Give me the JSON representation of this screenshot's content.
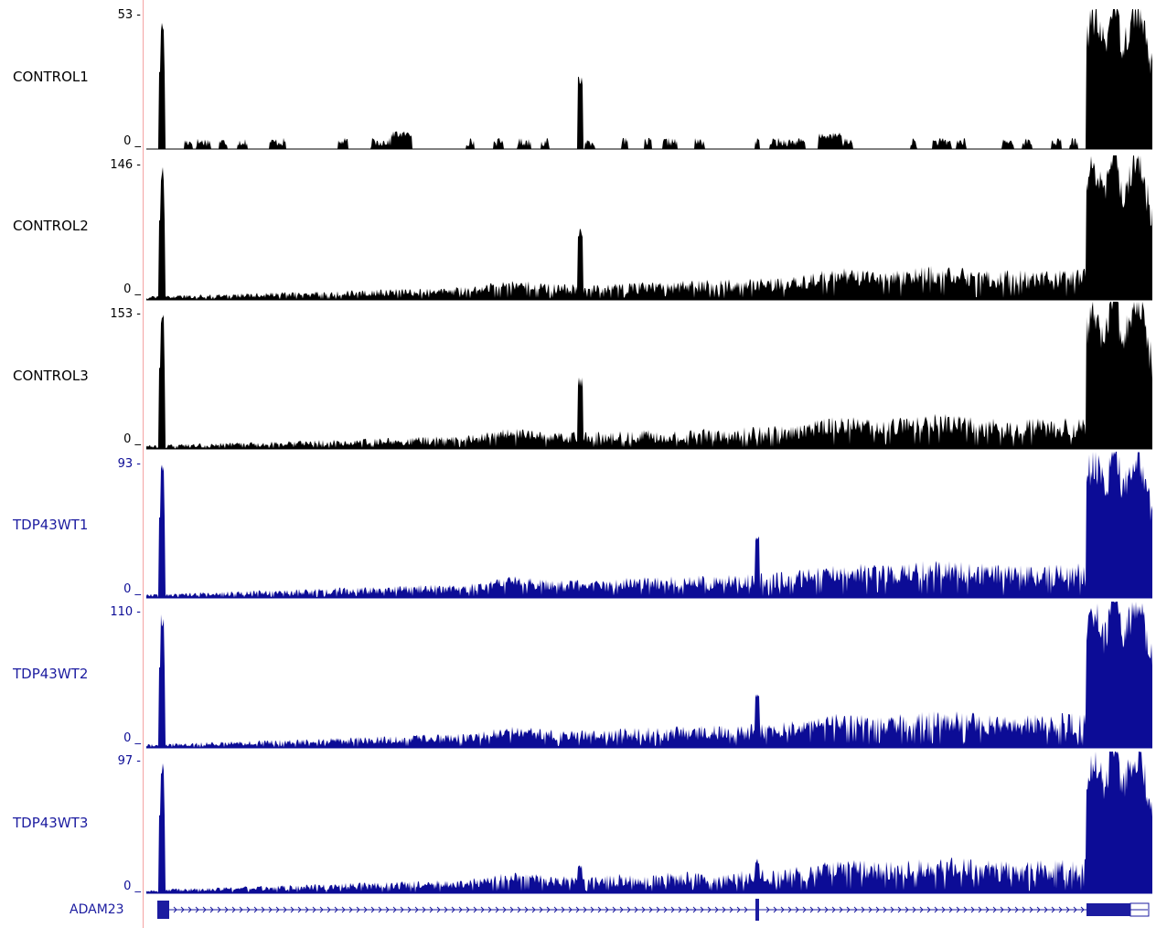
{
  "tracks": [
    {
      "name": "CONTROL1",
      "max_label": "53 -",
      "min_label": "0 _",
      "color": "#000000"
    },
    {
      "name": "CONTROL2",
      "max_label": "146 -",
      "min_label": "0 _",
      "color": "#000000"
    },
    {
      "name": "CONTROL3",
      "max_label": "153 -",
      "min_label": "0 _",
      "color": "#000000"
    },
    {
      "name": "TDP43WT1",
      "max_label": "93 -",
      "min_label": "0 _",
      "color": "#0c0c96"
    },
    {
      "name": "TDP43WT2",
      "max_label": "110 -",
      "min_label": "0 _",
      "color": "#0c0c96"
    },
    {
      "name": "TDP43WT3",
      "max_label": "97 -",
      "min_label": "0 _",
      "color": "#0c0c96"
    }
  ],
  "gene": {
    "name": "ADAM23",
    "color": "#1c1ca0",
    "strand_icon": "chevron-right-icon"
  },
  "divider_color": "#f4a4a4"
}
